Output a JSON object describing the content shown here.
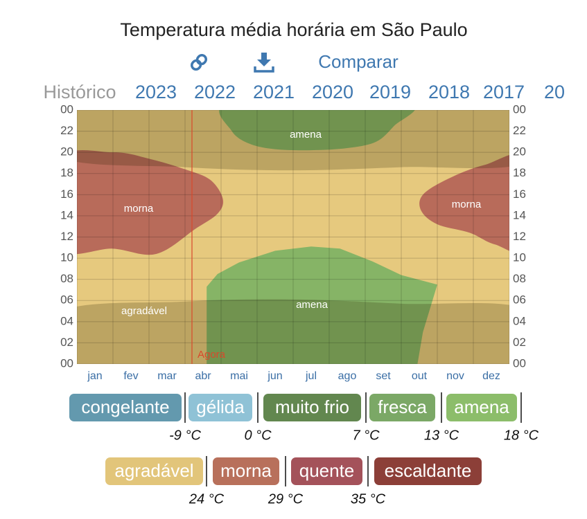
{
  "header": {
    "title": "Temperatura média horária em São Paulo",
    "compare": "Comparar"
  },
  "tabs": [
    "Histórico",
    "2023",
    "2022",
    "2021",
    "2020",
    "2019",
    "2018",
    "2017",
    "20"
  ],
  "chart_data": {
    "type": "heatmap",
    "categories": [
      "jan",
      "fev",
      "mar",
      "abr",
      "mai",
      "jun",
      "jul",
      "ago",
      "set",
      "out",
      "nov",
      "dez"
    ],
    "ylim": [
      0,
      24
    ],
    "yticks": [
      {
        "value": 0,
        "label": "00"
      },
      {
        "value": 2,
        "label": "02"
      },
      {
        "value": 4,
        "label": "04"
      },
      {
        "value": 6,
        "label": "06"
      },
      {
        "value": 8,
        "label": "08"
      },
      10,
      12,
      14,
      16,
      18,
      20,
      22,
      {
        "value": 24,
        "label": "00"
      }
    ],
    "region_labels": [
      "amena",
      "morna",
      "amena",
      "morna",
      "agradável"
    ],
    "now_label": "Agora",
    "legend": [
      {
        "name": "congelante",
        "color": "#6399ae"
      },
      {
        "name": "gélida",
        "color": "#8fc2d6"
      },
      {
        "name": "muito frio",
        "color": "#62874f"
      },
      {
        "name": "fresca",
        "color": "#7ba866"
      },
      {
        "name": "amena",
        "color": "#8cbd6a"
      },
      {
        "name": "agradável",
        "color": "#e2c57a"
      },
      {
        "name": "morna",
        "color": "#b8705b"
      },
      {
        "name": "quente",
        "color": "#a4525a"
      },
      {
        "name": "escaldante",
        "color": "#8c3f38"
      }
    ],
    "thresholds": [
      {
        "value": -9,
        "label": "-9 °C"
      },
      {
        "value": 0,
        "label": "0 °C"
      },
      {
        "value": 7,
        "label": "7 °C"
      },
      {
        "value": 13,
        "label": "13 °C"
      },
      {
        "value": 18,
        "label": "18 °C"
      },
      {
        "value": 24,
        "label": "24 °C"
      },
      {
        "value": 29,
        "label": "29 °C"
      },
      {
        "value": 35,
        "label": "35 °C"
      }
    ]
  }
}
